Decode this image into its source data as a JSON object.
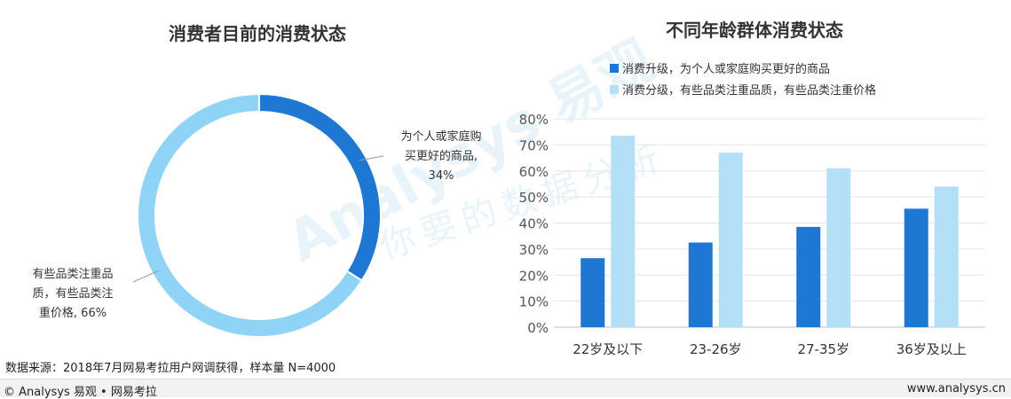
{
  "left_chart": {
    "title": "消费者目前的消费状态",
    "chart_data": {
      "type": "pie",
      "title": "消费者目前的消费状态",
      "donut": true,
      "slices": [
        {
          "label": "为个人或家庭购买更好的商品",
          "value": 34,
          "color": "#1f77d4",
          "label_lines": [
            "为个人或家庭购",
            "买更好的商品,",
            "34%"
          ]
        },
        {
          "label": "有些品类注重品质，有些品类注重价格",
          "value": 66,
          "color": "#8fd4f7",
          "label_lines": [
            "有些品类注重品",
            "质，有些品类注",
            "重价格, 66%"
          ]
        }
      ]
    }
  },
  "right_chart": {
    "title": "不同年龄群体消费状态",
    "chart_data": {
      "type": "bar",
      "title": "不同年龄群体消费状态",
      "categories": [
        "22岁及以下",
        "23-26岁",
        "27-35岁",
        "36岁及以上"
      ],
      "series": [
        {
          "name": "消费升级，为个人或家庭购买更好的商品",
          "values": [
            26.5,
            32.5,
            38.5,
            45.5
          ],
          "color": "#1f77d4"
        },
        {
          "name": "消费分级，有些品类注重品质，有些品类注重价格",
          "values": [
            73.5,
            67,
            61,
            54
          ],
          "color": "#b3e0f7"
        }
      ],
      "ylim": [
        0,
        80
      ],
      "yticks": [
        "0%",
        "10%",
        "20%",
        "30%",
        "40%",
        "50%",
        "60%",
        "70%",
        "80%"
      ],
      "grid": true,
      "legend": "top-left"
    }
  },
  "source": "数据来源：2018年7月网易考拉用户网调获得，样本量 N=4000",
  "footer": {
    "left": "© Analysys 易观 • 网易考拉",
    "right": "www.analysys.cn"
  },
  "watermark": {
    "brand": "Analysys 易观",
    "slogan": "你要的数据分析"
  }
}
